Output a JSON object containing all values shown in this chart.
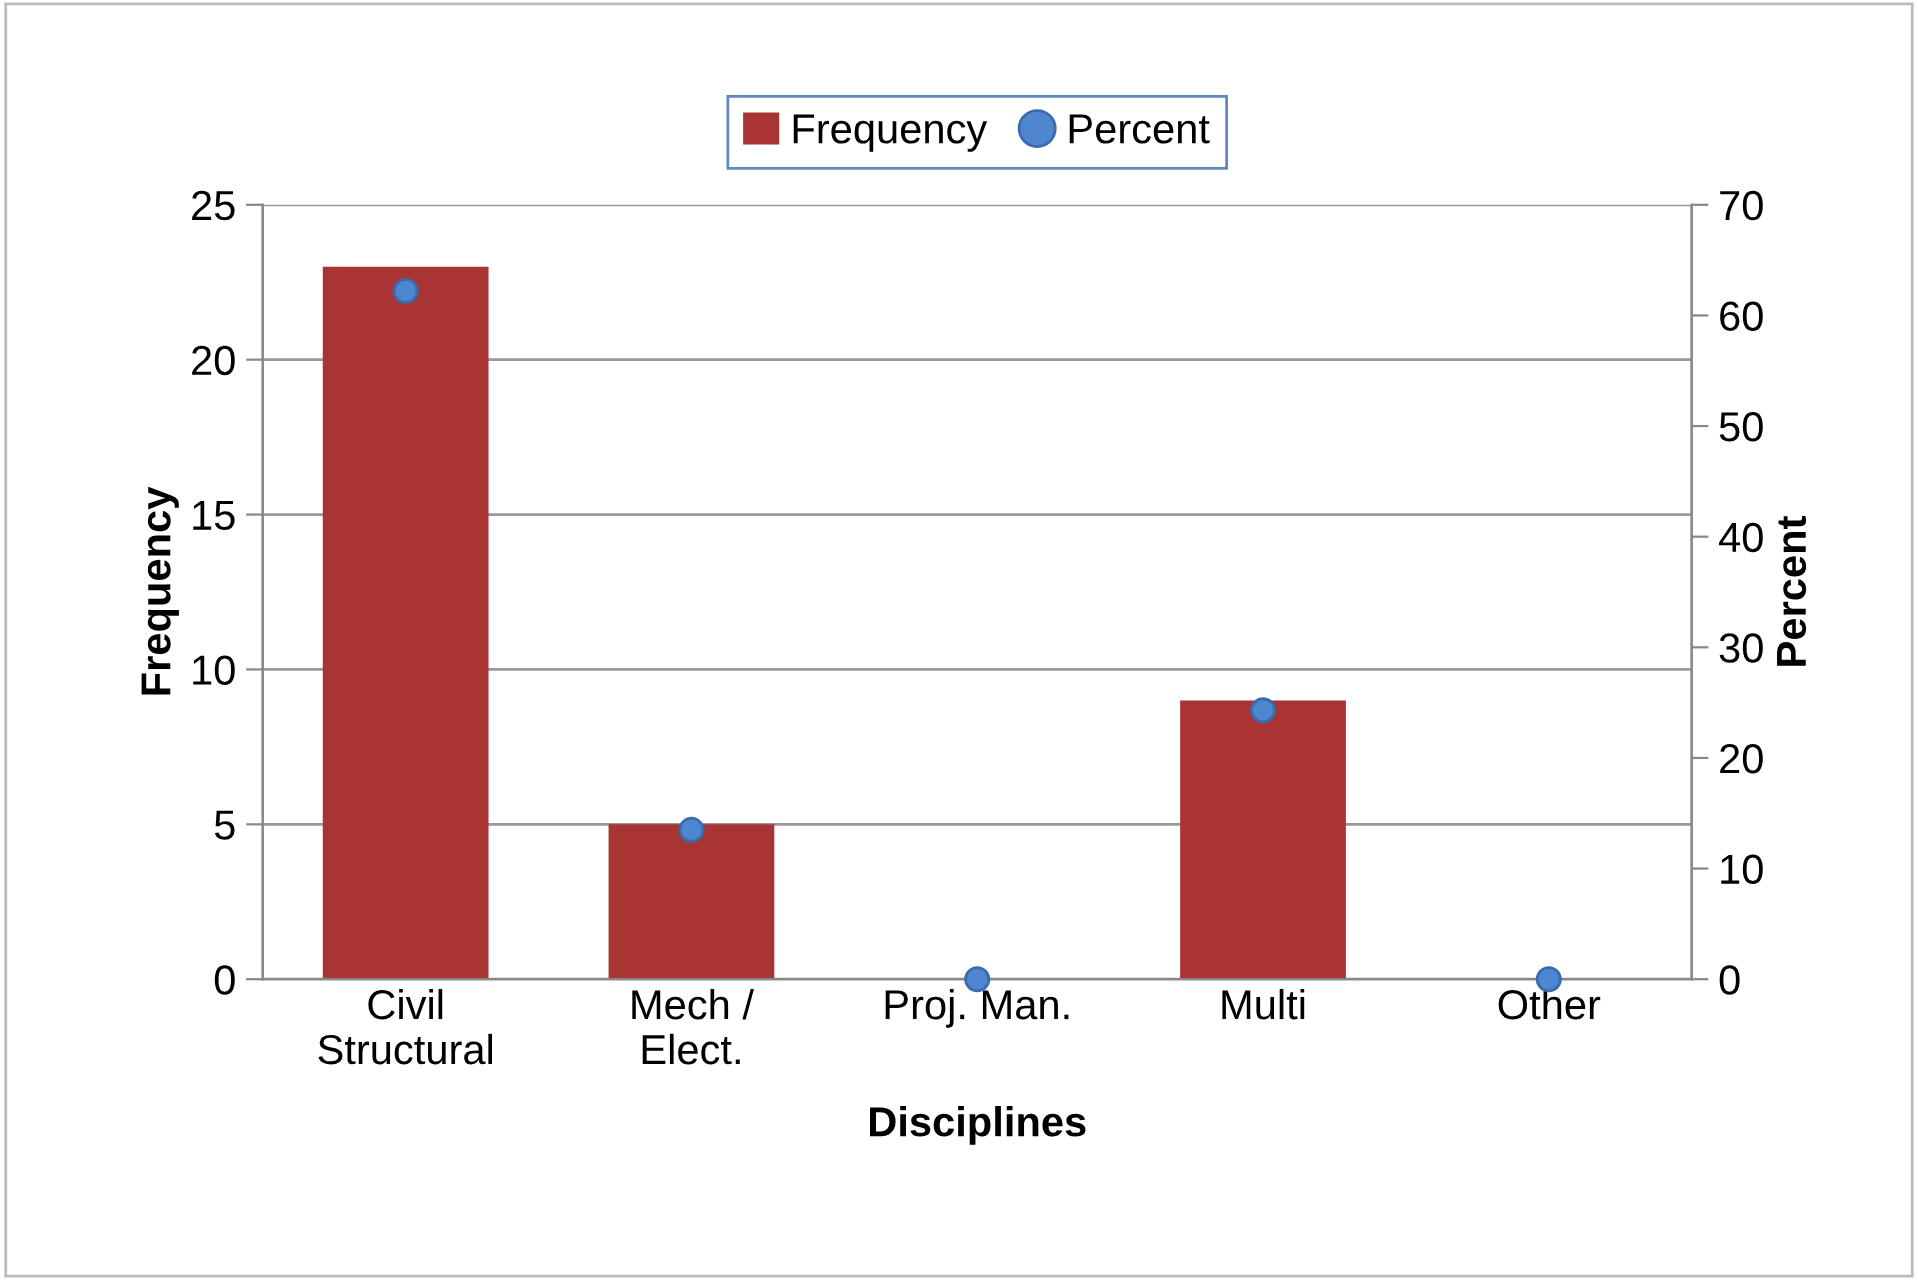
{
  "chart_data": {
    "type": "bar",
    "xlabel": "Disciplines",
    "ylabel": "Frequency",
    "y2label": "Percent",
    "categories": [
      "Civil\nStructural",
      "Mech /\nElect.",
      "Proj. Man.",
      "Multi",
      "Other"
    ],
    "series": [
      {
        "name": "Frequency",
        "color": "#a83434",
        "values": [
          23,
          5,
          0,
          9,
          0
        ]
      },
      {
        "name": "Percent",
        "type": "scatter",
        "axis": "y2",
        "color": "#4f86d0",
        "marker": "circle",
        "values": [
          62.2,
          13.5,
          0,
          24.3,
          0
        ]
      }
    ],
    "ylim": [
      0,
      25
    ],
    "yticks": [
      0,
      5,
      10,
      15,
      20,
      25
    ],
    "y2lim": [
      0,
      70
    ],
    "y2ticks": [
      0,
      10,
      20,
      30,
      40,
      50,
      60,
      70
    ],
    "grid": "y",
    "legend": "top"
  }
}
